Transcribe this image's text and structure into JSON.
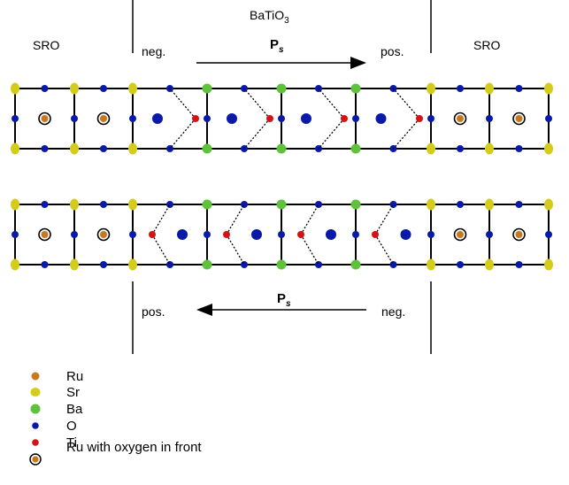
{
  "colors": {
    "ru": "#c8781e",
    "sr": "#d4cc1a",
    "ba": "#5ec23a",
    "o": "#0a1aa8",
    "ti": "#d41414",
    "line": "#000000"
  },
  "labels": {
    "batio3": "BaTiO",
    "batio3_sub": "3",
    "sro_left": "SRO",
    "sro_right": "SRO",
    "top_neg": "neg.",
    "top_pos": "pos.",
    "bottom_pos": "pos.",
    "bottom_neg": "neg.",
    "ps_top": "P",
    "ps_top_sub": "s",
    "ps_bottom": "P",
    "ps_bottom_sub": "s"
  },
  "legend": [
    {
      "icon": "ru-dot",
      "label": "Ru"
    },
    {
      "icon": "sr-dot",
      "label": "Sr"
    },
    {
      "icon": "ba-dot",
      "label": "Ba"
    },
    {
      "icon": "o-dot",
      "label": "O"
    },
    {
      "icon": "ti-dot",
      "label": "Ti"
    },
    {
      "icon": "ru-oxygen-front",
      "label": "Ru with oxygen in front"
    }
  ],
  "rows": {
    "top": {
      "ti_direction": "right"
    },
    "bottom": {
      "ti_direction": "left"
    }
  }
}
